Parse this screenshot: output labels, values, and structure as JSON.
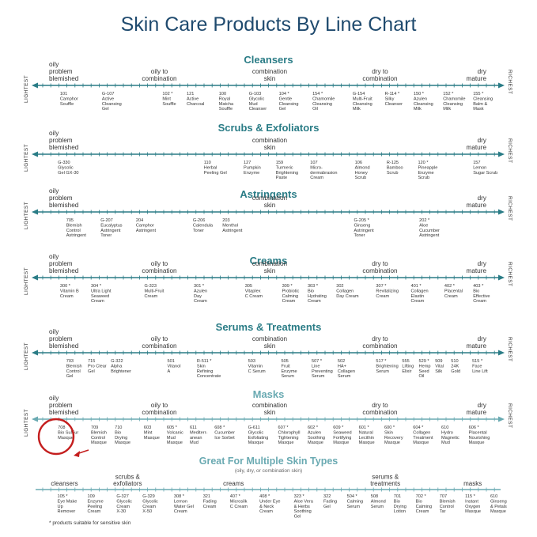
{
  "title": "Skin Care Products By Line Chart",
  "axis": {
    "left": "LIGHTEST",
    "right": "RICHEST"
  },
  "colors": {
    "title": "#1f4a6e",
    "teal": "#2a7c86",
    "light_teal": "#6aaab2",
    "marker": "#c41e1e"
  },
  "chart_data": [
    {
      "type": "line",
      "title": "Cleansers",
      "zones": [
        {
          "label": "oily\nproblem\nblemished",
          "pos": 0
        },
        {
          "label": "oily to\ncombination",
          "pos": 0.25
        },
        {
          "label": "combination\nskin",
          "pos": 0.5
        },
        {
          "label": "dry to\ncombination",
          "pos": 0.75
        },
        {
          "label": "dry\nmature",
          "pos": 1
        }
      ],
      "products": [
        {
          "label": "101\nCamphor\nSouffle",
          "pos": 0.05
        },
        {
          "label": "G-107\nActive\nCleansing\nGel",
          "pos": 0.145
        },
        {
          "label": "102 *\nMint\nSouffle",
          "pos": 0.282
        },
        {
          "label": "121\nActive\nCharcoal",
          "pos": 0.337
        },
        {
          "label": "100\nRoyal\nMatcha\nSouffle",
          "pos": 0.41
        },
        {
          "label": "G-103\nGlycolic\nMud\nCleanser",
          "pos": 0.478
        },
        {
          "label": "104 *\nGentle\nCleansing\nGel",
          "pos": 0.546
        },
        {
          "label": "154 *\nChamomile\nCleansing\nOil",
          "pos": 0.622
        },
        {
          "label": "G-154\nMulti-Fruit\nCleansing\nMilk",
          "pos": 0.713
        },
        {
          "label": "R-114 *\nSilky\nCleanser",
          "pos": 0.786
        },
        {
          "label": "150 *\nAzulen\nCleansing\nMilk",
          "pos": 0.851
        },
        {
          "label": "152 *\nChamomile\nCleansing\nMilk",
          "pos": 0.918
        },
        {
          "label": "155 *\nCleansing\nBalm &\nMask",
          "pos": 0.986
        }
      ]
    },
    {
      "type": "line",
      "title": "Scrubs & Exfoliators",
      "zones": [
        {
          "label": "oily\nproblem\nblemished",
          "pos": 0
        },
        {
          "label": "combination\nskin",
          "pos": 0.5
        },
        {
          "label": "dry\nmature",
          "pos": 1
        }
      ],
      "products": [
        {
          "label": "G-330\nGlycolic\nGel GX-30",
          "pos": 0.045
        },
        {
          "label": "110\nHerbal\nPeeling Gel",
          "pos": 0.376
        },
        {
          "label": "127\nPumpkin\nEnzyme",
          "pos": 0.466
        },
        {
          "label": "159\nTurmeric\nBrightening\nPaste",
          "pos": 0.539
        },
        {
          "label": "107\nMicro-\ndermabrasion\nCream",
          "pos": 0.617
        },
        {
          "label": "106\nAlmond\nHoney\nScrub",
          "pos": 0.718
        },
        {
          "label": "R-125\nBamboo\nScrub",
          "pos": 0.79
        },
        {
          "label": "120 *\nPineapple\nEnzyme\nScrub",
          "pos": 0.861
        },
        {
          "label": "157\nLemon\nSugar Scrub",
          "pos": 0.986
        }
      ]
    },
    {
      "type": "line",
      "title": "Astringents",
      "zones": [
        {
          "label": "oily\nproblem\nblemished",
          "pos": 0
        },
        {
          "label": "combination\nskin",
          "pos": 0.5
        },
        {
          "label": "dry\nmature",
          "pos": 1
        }
      ],
      "products": [
        {
          "label": "705\nBlemish\nControl\nAstringent",
          "pos": 0.064
        },
        {
          "label": "G-207\nEucalyptus\nAstringent\nToner",
          "pos": 0.142
        },
        {
          "label": "204\nCamphor\nAstringent",
          "pos": 0.222
        },
        {
          "label": "G-206\nCalendula\nToner",
          "pos": 0.351
        },
        {
          "label": "203\nMenthol\nAstringent",
          "pos": 0.418
        },
        {
          "label": "G-205 *\nGinseng\nAstringent\nToner",
          "pos": 0.716
        },
        {
          "label": "202 *\nAloe\nCucumber\nAstringent",
          "pos": 0.864
        }
      ]
    },
    {
      "type": "line",
      "title": "Creams",
      "zones": [
        {
          "label": "oily\nproblem\nblemished",
          "pos": 0
        },
        {
          "label": "oily to\ncombination",
          "pos": 0.25
        },
        {
          "label": "combination\nskin",
          "pos": 0.5
        },
        {
          "label": "dry to\ncombination",
          "pos": 0.75
        },
        {
          "label": "dry\nmature",
          "pos": 1
        }
      ],
      "products": [
        {
          "label": "300 *\nVitamin B\nCream",
          "pos": 0.05
        },
        {
          "label": "304 *\nUltra Light\nSeaweed\nCream",
          "pos": 0.12
        },
        {
          "label": "G-323\nMulti-Fruit\nCream",
          "pos": 0.241
        },
        {
          "label": "301 *\nAzulen\nDay\nCream",
          "pos": 0.353
        },
        {
          "label": "305\nVitaplex\nC Cream",
          "pos": 0.469
        },
        {
          "label": "309 *\nProbiotic\nCalming\nCream",
          "pos": 0.553
        },
        {
          "label": "303 *\nBio\nHydrating\nCream",
          "pos": 0.611
        },
        {
          "label": "302\nCollagen\nDay Cream",
          "pos": 0.676
        },
        {
          "label": "307 *\nRevitalizing\nCream",
          "pos": 0.766
        },
        {
          "label": "401 *\nCollagen\nElastin\nCream",
          "pos": 0.845
        },
        {
          "label": "402 *\nPlacental\nCream",
          "pos": 0.921
        },
        {
          "label": "403 *\nBio\nEffective\nCream",
          "pos": 0.986
        }
      ]
    },
    {
      "type": "line",
      "title": "Serums & Treatments",
      "zones": [
        {
          "label": "oily\nproblem\nblemished",
          "pos": 0
        },
        {
          "label": "oily to\ncombination",
          "pos": 0.25
        },
        {
          "label": "combination\nskin",
          "pos": 0.5
        },
        {
          "label": "dry to\ncombination",
          "pos": 0.75
        },
        {
          "label": "dry\nmature",
          "pos": 1
        }
      ],
      "products": [
        {
          "label": "703\nBlemish\nControl\nGel",
          "pos": 0.064
        },
        {
          "label": "715\nPro Clear\nGel",
          "pos": 0.113
        },
        {
          "label": "G-322\nAlpha\nBrightener",
          "pos": 0.165
        },
        {
          "label": "501\nVitanol\nA",
          "pos": 0.293
        },
        {
          "label": "R-511 *\nSkin\nRefining\nConcentrate",
          "pos": 0.36
        },
        {
          "label": "503\nVitamin\nC Serum",
          "pos": 0.476
        },
        {
          "label": "505\nFruit\nEnzyme\nSerum",
          "pos": 0.551
        },
        {
          "label": "507 *\nLine\nPreventing\nSerum",
          "pos": 0.62
        },
        {
          "label": "502\nHA+\nCollagen\nSerum",
          "pos": 0.679
        },
        {
          "label": "517 *\nBrightening\nSerum",
          "pos": 0.766
        },
        {
          "label": "555\nLifting\nElixir",
          "pos": 0.825
        },
        {
          "label": "529 *\nHemp\nSeed\nOil",
          "pos": 0.863
        },
        {
          "label": "509\nVital\nSilk",
          "pos": 0.9
        },
        {
          "label": "510\n24K\nGold",
          "pos": 0.936
        },
        {
          "label": "515 *\nFace\nLine Lift",
          "pos": 0.984
        }
      ]
    },
    {
      "type": "line",
      "title": "Masks",
      "zones": [
        {
          "label": "oily\nproblem\nblemished",
          "pos": 0
        },
        {
          "label": "oily to\ncombination",
          "pos": 0.25
        },
        {
          "label": "combination\nskin",
          "pos": 0.5
        },
        {
          "label": "dry to\ncombination",
          "pos": 0.75
        },
        {
          "label": "dry\nmature",
          "pos": 1
        }
      ],
      "products": [
        {
          "label": "708\nBio SulFur\nMasque",
          "pos": 0.045
        },
        {
          "label": "709\nBlemish\nControl\nMasque",
          "pos": 0.12
        },
        {
          "label": "710\nBio\nDrying\nMasque",
          "pos": 0.174
        },
        {
          "label": "603\nMint\nMasque",
          "pos": 0.24
        },
        {
          "label": "605 *\nVolcanic\nMud\nMasque",
          "pos": 0.292
        },
        {
          "label": "611\nMediterr-\nanean\nMud",
          "pos": 0.344
        },
        {
          "label": "608 *\nCucumber\nIce Sorbet",
          "pos": 0.4
        },
        {
          "label": "G-611\nGlycolic\nExfoliating\nMasque",
          "pos": 0.476
        },
        {
          "label": "607 *\nChlorophyll\nTightening\nMasque",
          "pos": 0.544
        },
        {
          "label": "602 *\nAzulen\nSoothing\nMasque",
          "pos": 0.611
        },
        {
          "label": "609 *\nSeaweed\nFortifying\nMasque",
          "pos": 0.669
        },
        {
          "label": "601 *\nNatural\nLecithin\nMasque",
          "pos": 0.727
        },
        {
          "label": "600 *\nSkin\nRecovery\nMasque",
          "pos": 0.785
        },
        {
          "label": "604 *\nCollagen\nTreatment\nMasque",
          "pos": 0.85
        },
        {
          "label": "610\nHydro\nMagnetic\nMud",
          "pos": 0.914
        },
        {
          "label": "606 *\nPlacental\nNourishing\nMasque",
          "pos": 0.976
        }
      ]
    }
  ],
  "multi": {
    "title": "Great For Multiple Skin Types",
    "subtitle": "(oily, dry, or combination skin)",
    "categories": [
      {
        "label": "cleansers",
        "pos": 0.035
      },
      {
        "label": "scrubs &\nexfoliators",
        "pos": 0.178
      },
      {
        "label": "creams",
        "pos": 0.418
      },
      {
        "label": "serums &\ntreatments",
        "pos": 0.762
      },
      {
        "label": "masks",
        "pos": 0.96
      }
    ],
    "products": [
      {
        "label": "105 *\nEye Make\nUp\nRemover",
        "pos": 0.044
      },
      {
        "label": "109\nEnzyme\nPeeling\nCream",
        "pos": 0.112
      },
      {
        "label": "G-327\nGlycolic\nCream\nX-30",
        "pos": 0.178
      },
      {
        "label": "G-329\nGlycolic\nCream\nX-50",
        "pos": 0.237
      },
      {
        "label": "308 *\nLemon\nWater Gel\nCream",
        "pos": 0.308
      },
      {
        "label": "321\nFading\nCream",
        "pos": 0.374
      },
      {
        "label": "407 *\nMicrosilk\nC Cream",
        "pos": 0.435
      },
      {
        "label": "408 *\nUnder Eye\n& Neck\nCream",
        "pos": 0.502
      },
      {
        "label": "323 *\nAloe Vera\n& Herbs\nSoothing\nGel",
        "pos": 0.58
      },
      {
        "label": "322\nFading\nGel",
        "pos": 0.647
      },
      {
        "label": "504 *\nCalming\nSerum",
        "pos": 0.7
      },
      {
        "label": "508\nAlmond\nSerum",
        "pos": 0.754
      },
      {
        "label": "701\nBio\nDrying\nLotion",
        "pos": 0.806
      },
      {
        "label": "702 *\nBio\nCalming\nCream",
        "pos": 0.856
      },
      {
        "label": "707\nBlemish\nControl\nTar",
        "pos": 0.91
      },
      {
        "label": "115 *\nInstant\nOxygen\nMasque",
        "pos": 0.968
      },
      {
        "label": "610\nGinseng\n& Petals\nMasque",
        "pos": 1.025
      }
    ]
  },
  "footnote": "* products suitable for sensitive skin"
}
